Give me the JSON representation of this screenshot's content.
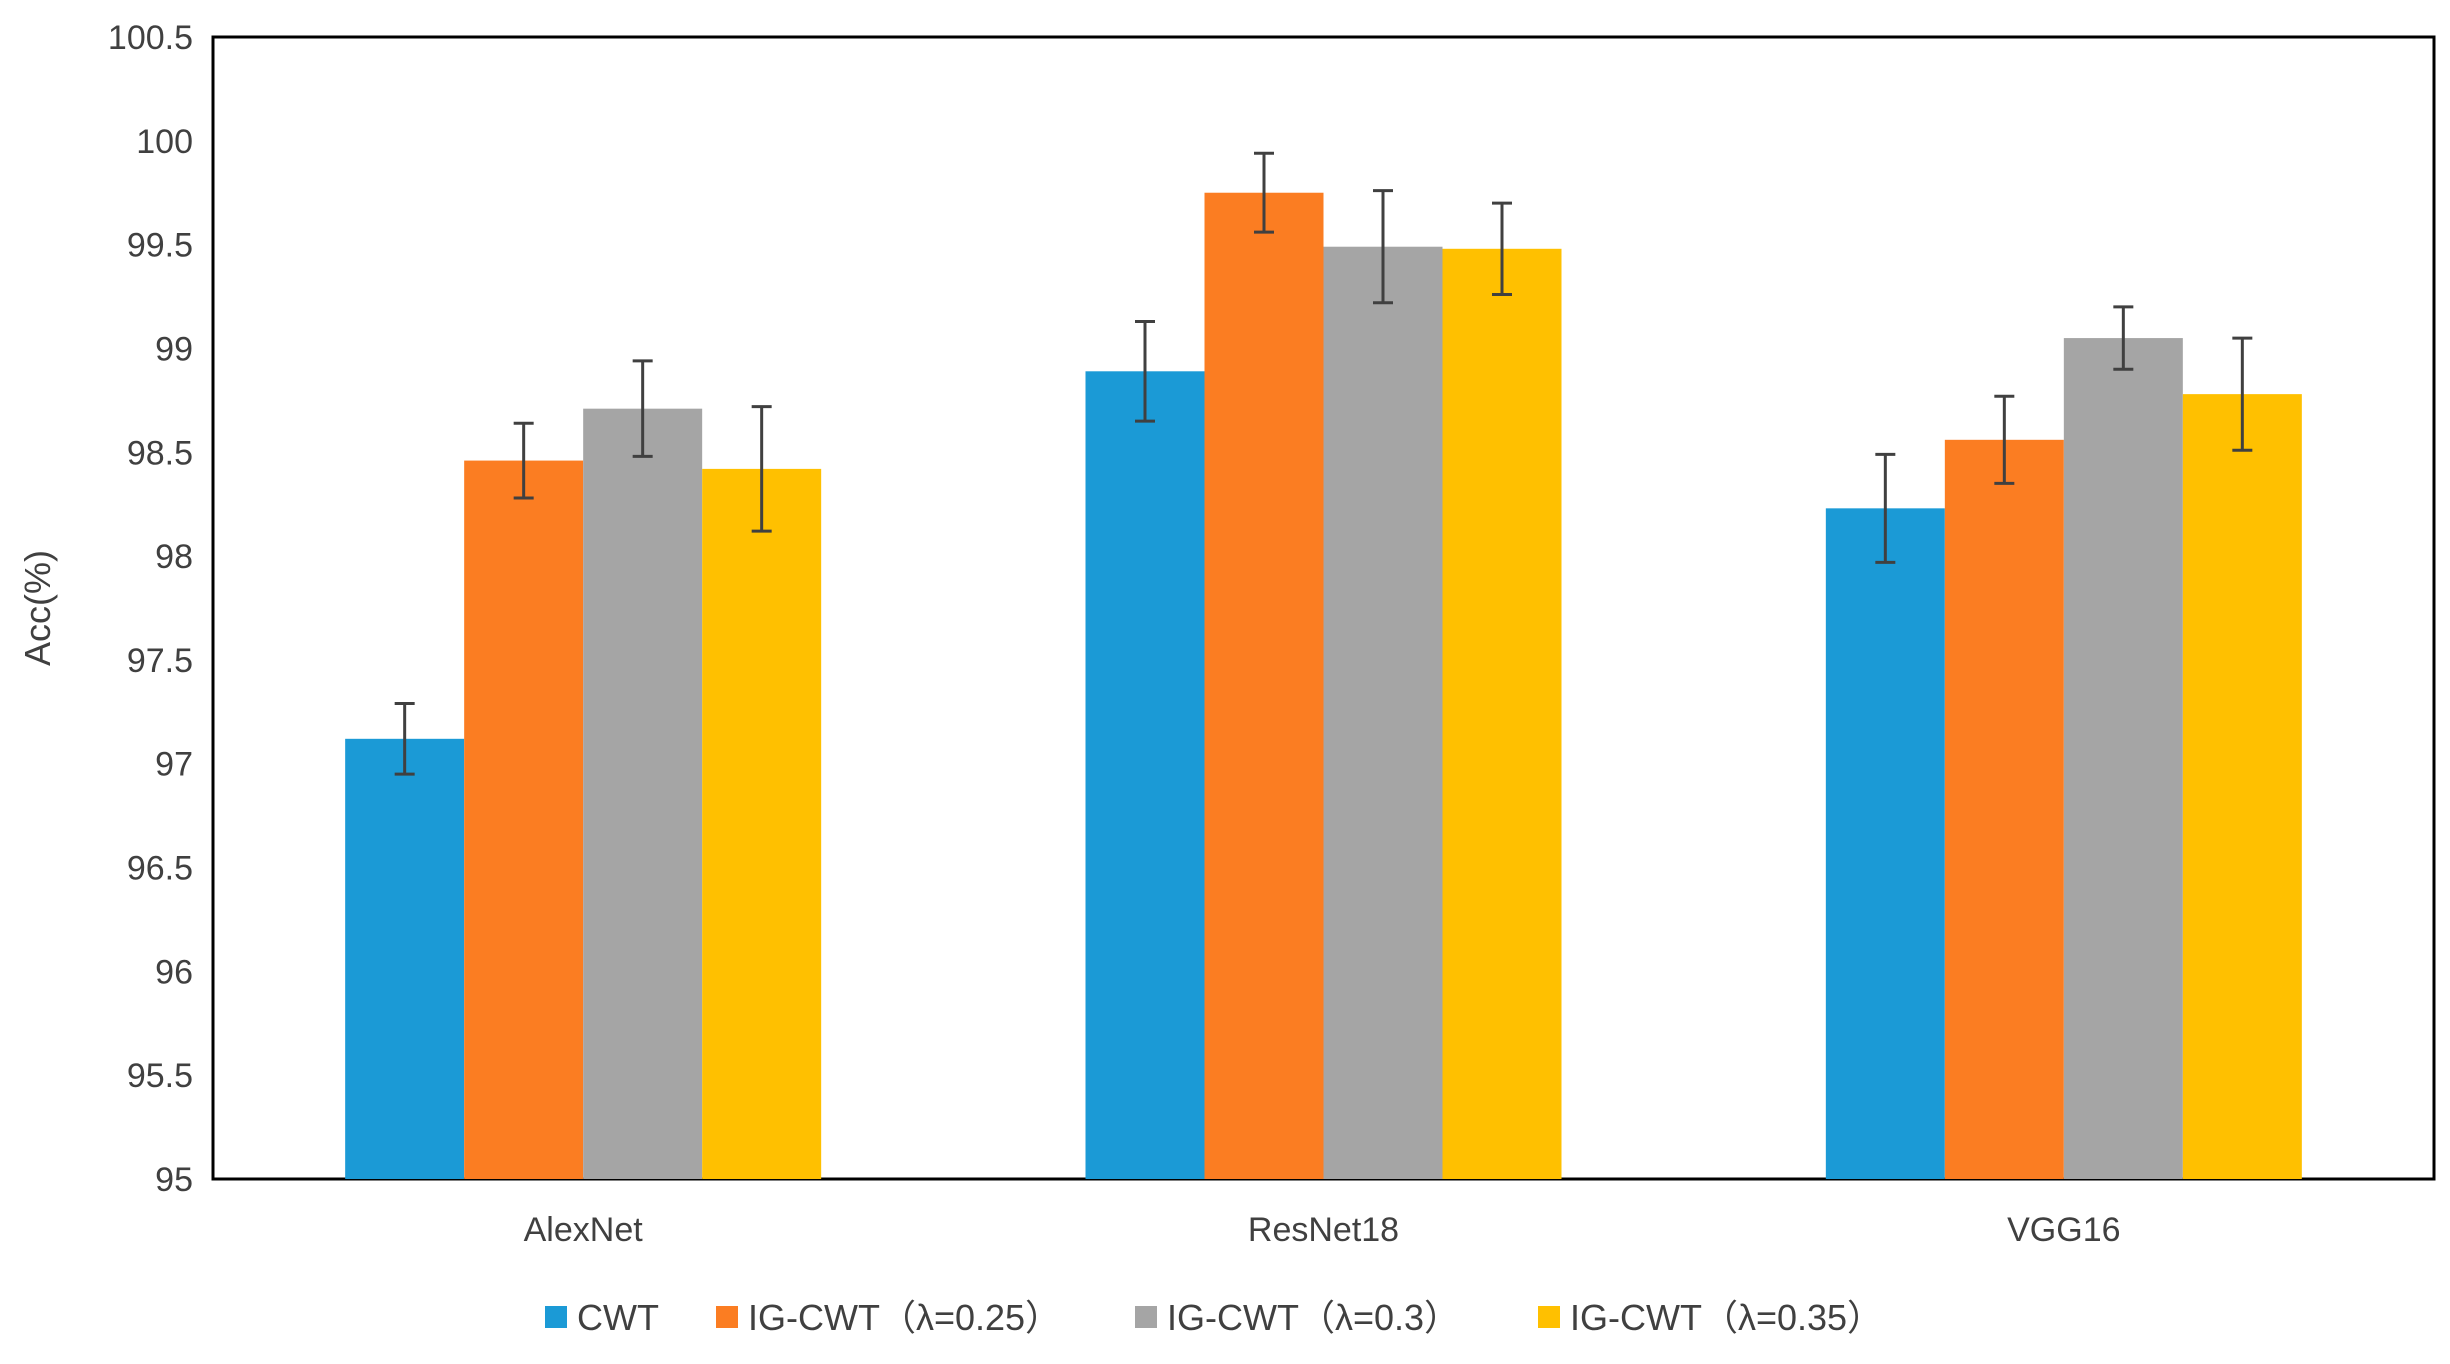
{
  "chart_data": {
    "type": "bar",
    "title": "",
    "xlabel": "",
    "ylabel": "Acc(%)",
    "ylim": [
      95,
      100.5
    ],
    "yticks": [
      "95",
      "95.5",
      "96",
      "96.5",
      "97",
      "97.5",
      "98",
      "98.5",
      "99",
      "99.5",
      "100",
      "100.5"
    ],
    "ytick_values": [
      95,
      95.5,
      96,
      96.5,
      97,
      97.5,
      98,
      98.5,
      99,
      99.5,
      100,
      100.5
    ],
    "grid": false,
    "legend_position": "bottom",
    "categories": [
      "AlexNet",
      "ResNet18",
      "VGG16"
    ],
    "series": [
      {
        "name": "CWT",
        "color": "#1b9ad6",
        "values": [
          97.12,
          98.89,
          98.23
        ],
        "error": [
          0.17,
          0.24,
          0.26
        ]
      },
      {
        "name": "IG-CWT（λ=0.25）",
        "color": "#fb7d22",
        "values": [
          98.46,
          99.75,
          98.56
        ],
        "error": [
          0.18,
          0.19,
          0.21
        ]
      },
      {
        "name": "IG-CWT（λ=0.3）",
        "color": "#a5a5a5",
        "values": [
          98.71,
          99.49,
          99.05
        ],
        "error": [
          0.23,
          0.27,
          0.15
        ]
      },
      {
        "name": "IG-CWT（λ=0.35）",
        "color": "#ffc000",
        "values": [
          98.42,
          99.48,
          98.78
        ],
        "error": [
          0.3,
          0.22,
          0.27
        ]
      }
    ]
  }
}
